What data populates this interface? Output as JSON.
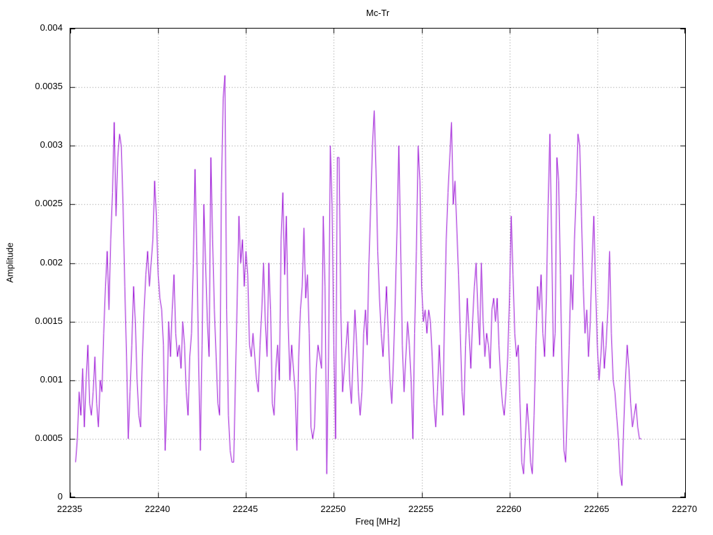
{
  "colors": {
    "background": "#ffffff",
    "axis": "#000000",
    "grid": "#8f8f8f",
    "text": "#000000",
    "line": "#9400d3"
  },
  "chart_data": {
    "type": "line",
    "title": "Mc-Tr",
    "xlabel": "Freq [MHz]",
    "ylabel": "Amplitude",
    "xlim": [
      22235,
      22270
    ],
    "ylim": [
      0,
      0.004
    ],
    "xticks": [
      22235,
      22240,
      22245,
      22250,
      22255,
      22260,
      22265,
      22270
    ],
    "xtick_labels": [
      "22235",
      "22240",
      "22245",
      "22250",
      "22255",
      "22260",
      "22265",
      "22270"
    ],
    "yticks": [
      0,
      0.0005,
      0.001,
      0.0015,
      0.002,
      0.0025,
      0.003,
      0.0035,
      0.004
    ],
    "ytick_labels": [
      "0",
      "0.0005",
      "0.001",
      "0.0015",
      "0.002",
      "0.0025",
      "0.003",
      "0.0035",
      "0.004"
    ],
    "grid": true,
    "grid_style": "dotted",
    "legend_position": "none",
    "line_color": "#9400d3",
    "series": [
      {
        "name": "Mc-Tr",
        "x_start": 22235.3,
        "x_step": 0.1,
        "amplitude_unit": 0.0001,
        "amplitudes": [
          3,
          5,
          9,
          7,
          11,
          6,
          10,
          13,
          8,
          7,
          9,
          12,
          8,
          6,
          10,
          9,
          14,
          18,
          21,
          16,
          22,
          26,
          32,
          24,
          29,
          31,
          30,
          25,
          18,
          12,
          5,
          9,
          13,
          18,
          15,
          10,
          7,
          6,
          12,
          16,
          19,
          21,
          18,
          20,
          22,
          27,
          24,
          19,
          17,
          16,
          13,
          4,
          8,
          15,
          12,
          16,
          19,
          14,
          12,
          13,
          11,
          15,
          13,
          9,
          7,
          12,
          14,
          20,
          28,
          21,
          12,
          4,
          13,
          25,
          20,
          15,
          12,
          29,
          22,
          16,
          12,
          8,
          7,
          26,
          34,
          36,
          16,
          7,
          4,
          3,
          3,
          10,
          17,
          24,
          20,
          22,
          18,
          21,
          19,
          13,
          12,
          14,
          12,
          10,
          9,
          13,
          16,
          20,
          15,
          12,
          20,
          16,
          8,
          7,
          11,
          13,
          10,
          22,
          26,
          19,
          24,
          15,
          10,
          13,
          11,
          9,
          4,
          12,
          16,
          18,
          23,
          17,
          19,
          14,
          6,
          5,
          6,
          11,
          13,
          12,
          11,
          24,
          18,
          2,
          12,
          30,
          25,
          13,
          5,
          29,
          29,
          16,
          9,
          11,
          13,
          15,
          10,
          8,
          12,
          16,
          13,
          9,
          7,
          9,
          14,
          16,
          13,
          20,
          25,
          30,
          33,
          28,
          21,
          17,
          14,
          12,
          15,
          18,
          14,
          10,
          8,
          12,
          17,
          23,
          30,
          22,
          13,
          9,
          12,
          15,
          13,
          10,
          5,
          14,
          21,
          30,
          27,
          18,
          15,
          16,
          14,
          16,
          15,
          12,
          8,
          6,
          9,
          13,
          10,
          7,
          15,
          22,
          26,
          29,
          32,
          25,
          27,
          23,
          19,
          14,
          9,
          7,
          13,
          17,
          14,
          11,
          15,
          18,
          20,
          16,
          13,
          20,
          15,
          12,
          14,
          13,
          11,
          16,
          17,
          15,
          17,
          13,
          10,
          8,
          7,
          9,
          12,
          17,
          24,
          19,
          14,
          12,
          13,
          8,
          3,
          2,
          5,
          8,
          6,
          3,
          2,
          7,
          13,
          18,
          16,
          19,
          14,
          12,
          17,
          25,
          31,
          22,
          12,
          14,
          29,
          27,
          19,
          10,
          4,
          3,
          8,
          13,
          19,
          16,
          22,
          26,
          31,
          30,
          24,
          18,
          14,
          16,
          12,
          15,
          20,
          24,
          18,
          13,
          10,
          12,
          15,
          11,
          13,
          16,
          21,
          14,
          10,
          9,
          7,
          5,
          2,
          1,
          6,
          10,
          13,
          11,
          8,
          6,
          7,
          8,
          6,
          5,
          5
        ]
      }
    ]
  }
}
